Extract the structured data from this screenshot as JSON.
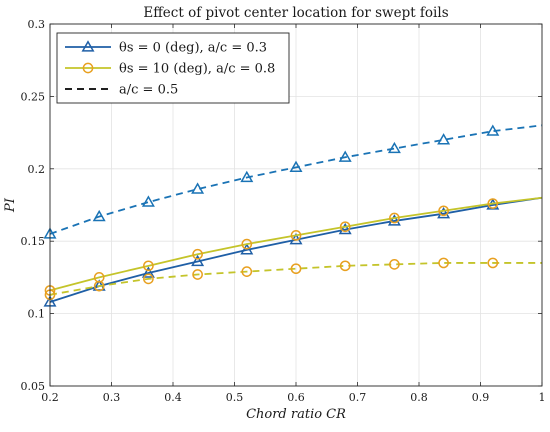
{
  "chart_data": {
    "type": "line",
    "title": "Effect of pivot center location for swept foils",
    "xlabel": "Chord ratio CR",
    "ylabel": "PI",
    "xlim": [
      0.2,
      1.0
    ],
    "ylim": [
      0.05,
      0.3
    ],
    "xticks": [
      "0.2",
      "0.3",
      "0.4",
      "0.5",
      "0.6",
      "0.7",
      "0.8",
      "0.9",
      "1"
    ],
    "yticks": [
      "0.05",
      "0.1",
      "0.15",
      "0.2",
      "0.25",
      "0.3"
    ],
    "grid": true,
    "legend_position": "top-left",
    "colors": {
      "blue": "#1f5fa6",
      "blue_dashed": "#1a73b5",
      "yellow": "#c4c42a",
      "orange_marker": "#e8a020"
    },
    "legend": [
      {
        "label": "θs = 0 (deg), a/c = 0.3",
        "style": "solid-triangle",
        "color": "#1f5fa6"
      },
      {
        "label": "θs = 10 (deg), a/c = 0.8",
        "style": "solid-circle",
        "color": "#c4c42a"
      },
      {
        "label": "a/c = 0.5",
        "style": "dashed",
        "color": "#000000"
      }
    ],
    "series": [
      {
        "x": [
          0.2,
          0.28,
          0.36,
          0.44,
          0.52,
          0.6,
          0.68,
          0.76,
          0.84,
          0.92,
          1.0
        ],
        "values": [
          0.108,
          0.119,
          0.128,
          0.136,
          0.144,
          0.151,
          0.158,
          0.164,
          0.169,
          0.175,
          0.18
        ],
        "marker": "triangle",
        "line": "solid",
        "color": "#1f5fa6"
      },
      {
        "x": [
          0.2,
          0.28,
          0.36,
          0.44,
          0.52,
          0.6,
          0.68,
          0.76,
          0.84,
          0.92,
          1.0
        ],
        "values": [
          0.116,
          0.125,
          0.133,
          0.141,
          0.148,
          0.154,
          0.16,
          0.166,
          0.171,
          0.176,
          0.18
        ],
        "marker": "circle",
        "line": "solid",
        "color": "#c4c42a"
      },
      {
        "x": [
          0.2,
          0.28,
          0.36,
          0.44,
          0.52,
          0.6,
          0.68,
          0.76,
          0.84,
          0.92,
          1.0
        ],
        "values": [
          0.155,
          0.167,
          0.177,
          0.186,
          0.194,
          0.201,
          0.208,
          0.214,
          0.22,
          0.226,
          0.23
        ],
        "marker": "triangle",
        "line": "dashed",
        "color": "#1a73b5"
      },
      {
        "x": [
          0.2,
          0.28,
          0.36,
          0.44,
          0.52,
          0.6,
          0.68,
          0.76,
          0.84,
          0.92,
          1.0
        ],
        "values": [
          0.113,
          0.119,
          0.124,
          0.127,
          0.129,
          0.131,
          0.133,
          0.134,
          0.135,
          0.135,
          0.135
        ],
        "marker": "circle",
        "line": "dashed",
        "color": "#c4c42a"
      }
    ]
  }
}
